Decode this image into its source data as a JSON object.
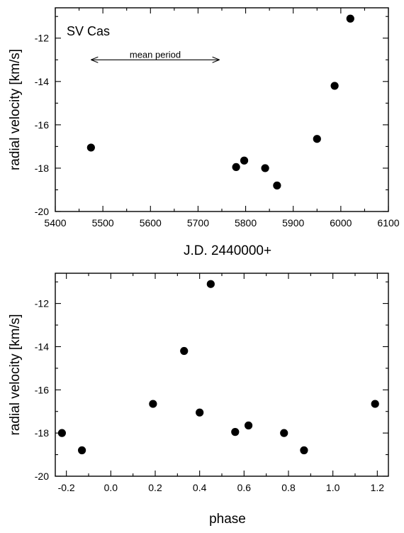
{
  "chart_data": [
    {
      "type": "scatter",
      "title": "",
      "annotation": "SV Cas",
      "arrow_annotation": {
        "label": "mean period",
        "x_from": 5475,
        "x_to": 5745,
        "y": -13.0
      },
      "xlabel": "J.D. 2440000+",
      "ylabel": "radial velocity [km/s]",
      "xlim": [
        5400,
        6100
      ],
      "ylim": [
        -20,
        -10.6
      ],
      "xticks": [
        5400,
        5500,
        5600,
        5700,
        5800,
        5900,
        6000,
        6100
      ],
      "xtick_labels": [
        "5400",
        "5500",
        "5600",
        "5700",
        "5800",
        "5900",
        "6000",
        "6100"
      ],
      "yticks": [
        -20,
        -18,
        -16,
        -14,
        -12
      ],
      "ytick_labels": [
        "-20",
        "-18",
        "-16",
        "-14",
        "-12"
      ],
      "grid": false,
      "points": [
        {
          "x": 5475,
          "y": -17.05
        },
        {
          "x": 5780,
          "y": -17.95
        },
        {
          "x": 5797,
          "y": -17.65
        },
        {
          "x": 5841,
          "y": -18.0
        },
        {
          "x": 5866,
          "y": -18.8
        },
        {
          "x": 5950,
          "y": -16.65
        },
        {
          "x": 5987,
          "y": -14.2
        },
        {
          "x": 6020,
          "y": -11.1
        }
      ]
    },
    {
      "type": "scatter",
      "title": "",
      "xlabel": "phase",
      "ylabel": "radial velocity [km/s]",
      "xlim": [
        -0.25,
        1.25
      ],
      "ylim": [
        -20,
        -10.6
      ],
      "xticks": [
        -0.2,
        0.0,
        0.2,
        0.4,
        0.6,
        0.8,
        1.0,
        1.2
      ],
      "xtick_labels": [
        "-0.2",
        "0.0",
        "0.2",
        "0.4",
        "0.6",
        "0.8",
        "1.0",
        "1.2"
      ],
      "yticks": [
        -20,
        -18,
        -16,
        -14,
        -12
      ],
      "ytick_labels": [
        "-20",
        "-18",
        "-16",
        "-14",
        "-12"
      ],
      "grid": false,
      "points": [
        {
          "x": -0.22,
          "y": -18.0
        },
        {
          "x": -0.13,
          "y": -18.8
        },
        {
          "x": 0.19,
          "y": -16.65
        },
        {
          "x": 0.33,
          "y": -14.2
        },
        {
          "x": 0.4,
          "y": -17.05
        },
        {
          "x": 0.45,
          "y": -11.1
        },
        {
          "x": 0.56,
          "y": -17.95
        },
        {
          "x": 0.62,
          "y": -17.65
        },
        {
          "x": 0.78,
          "y": -18.0
        },
        {
          "x": 0.87,
          "y": -18.8
        },
        {
          "x": 1.19,
          "y": -16.65
        }
      ]
    }
  ]
}
